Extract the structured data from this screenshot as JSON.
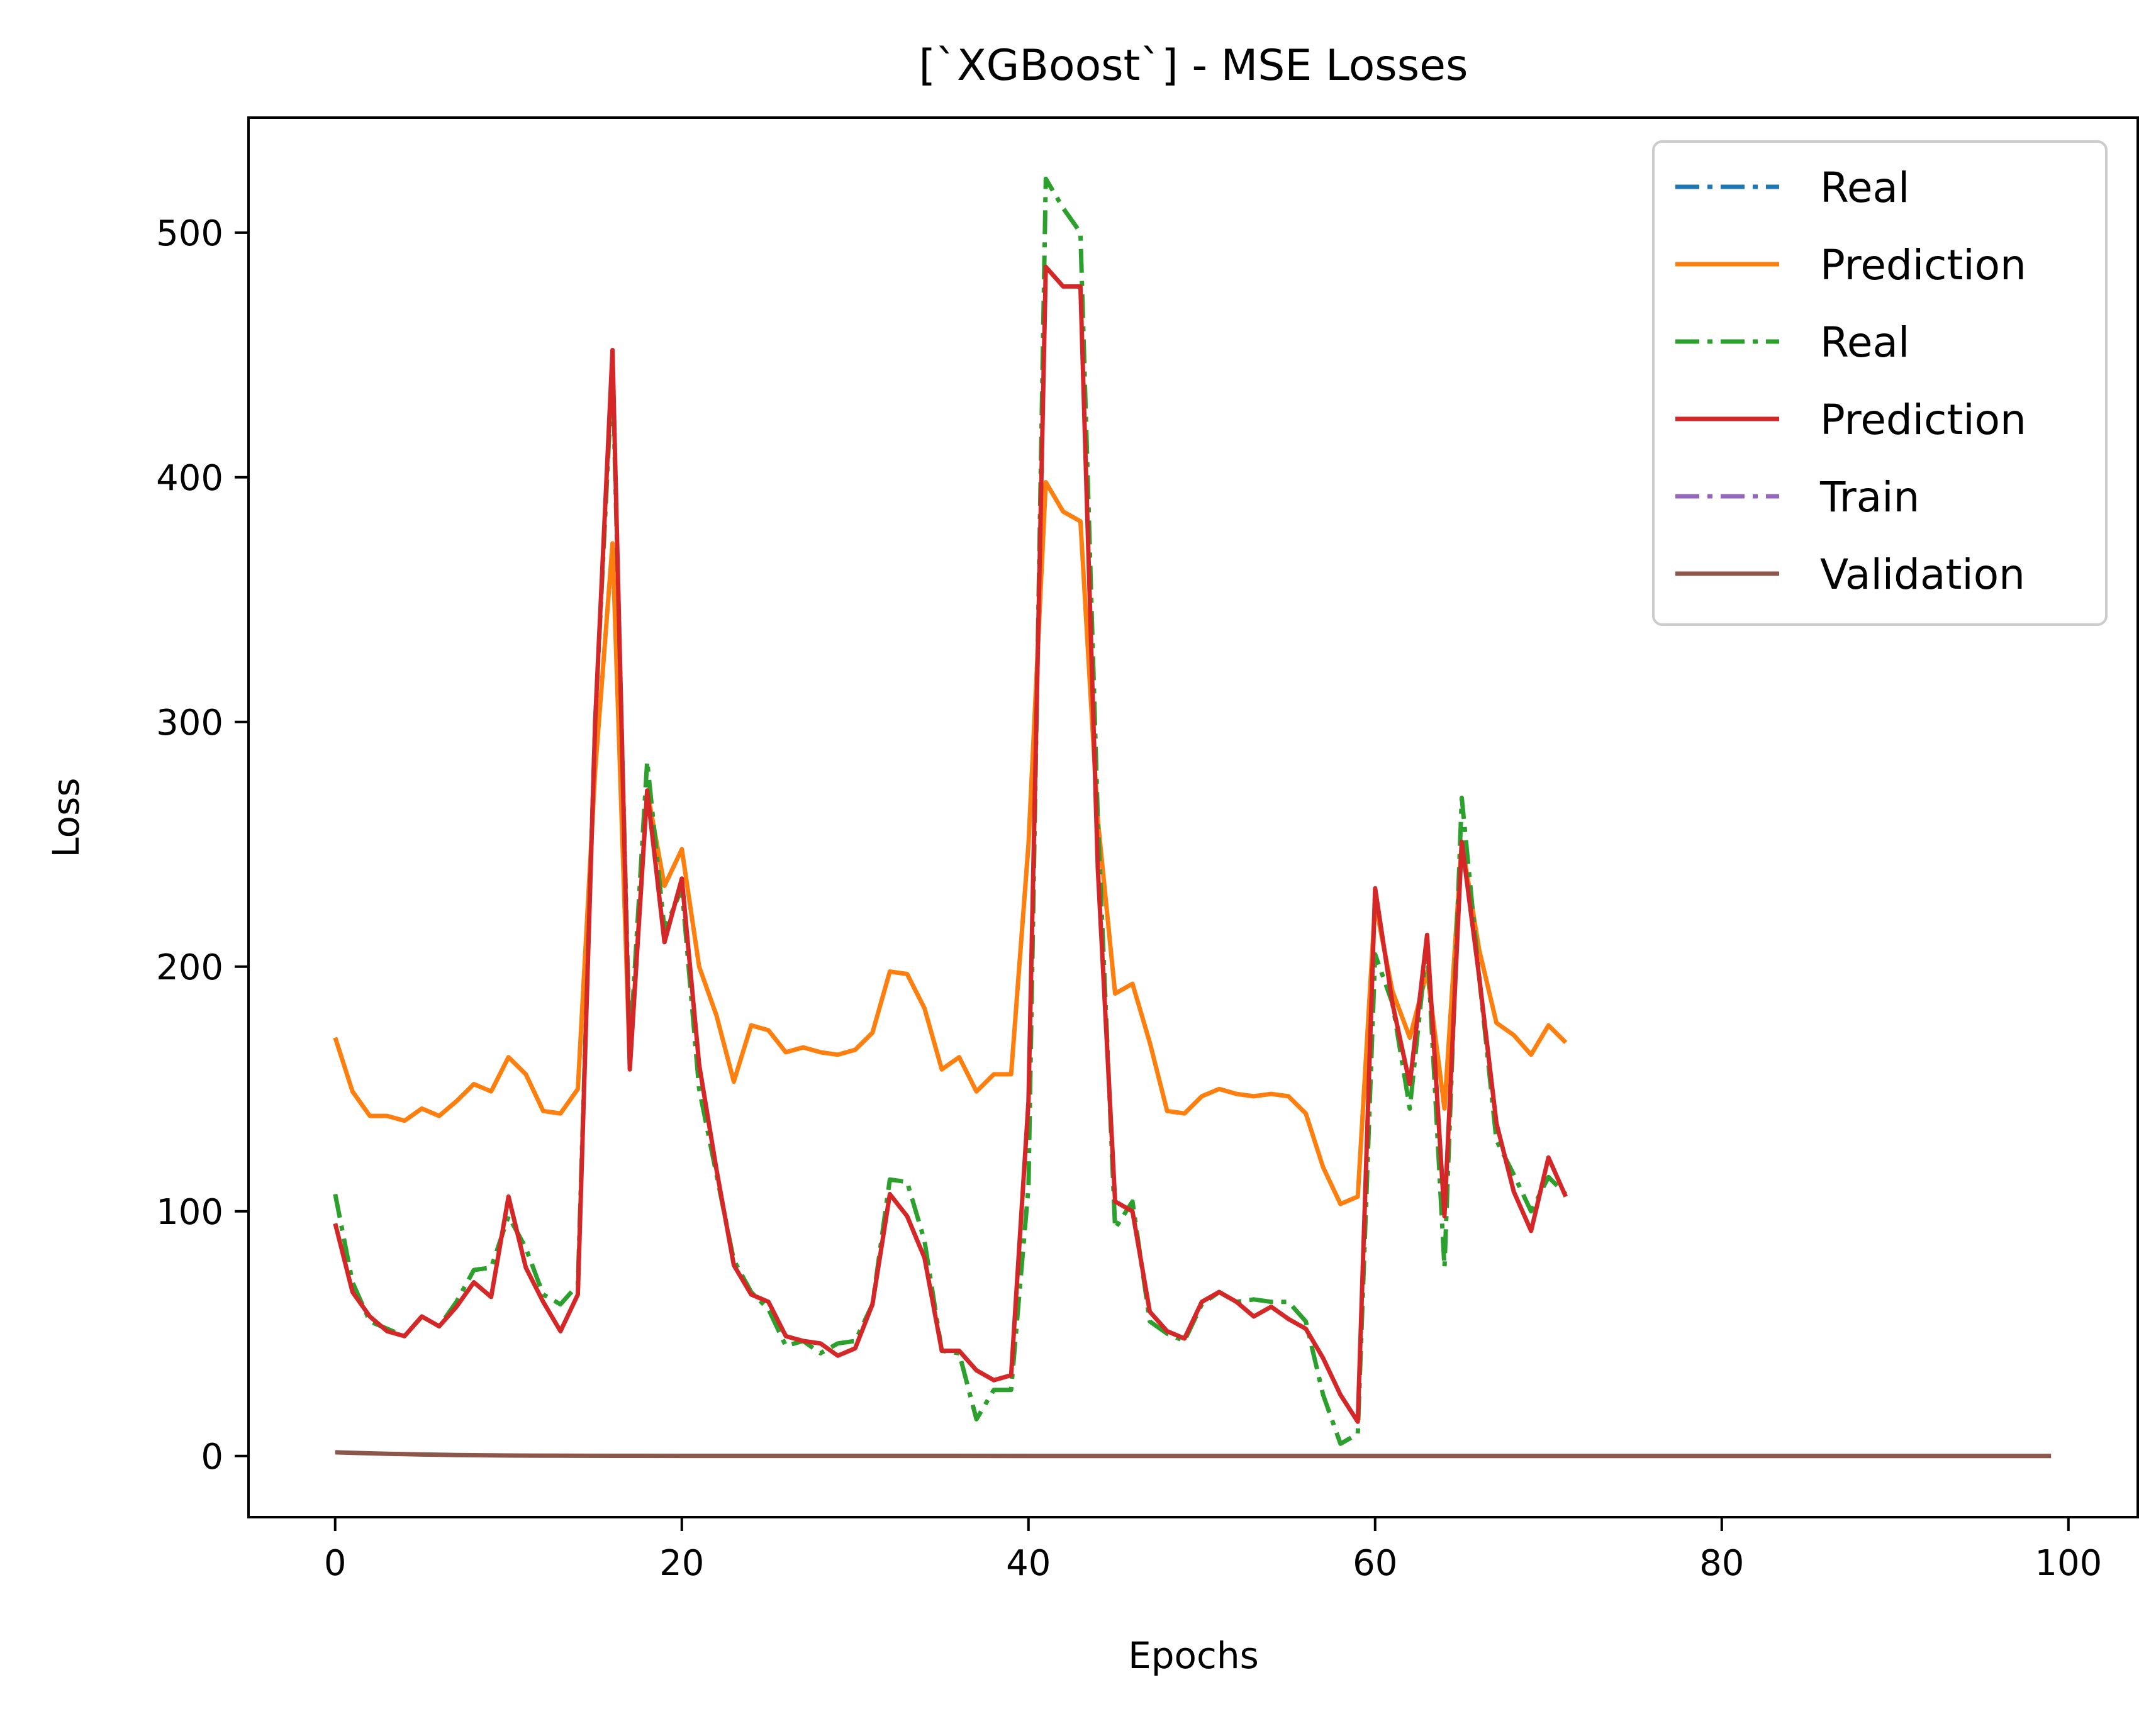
{
  "chart_data": {
    "type": "line",
    "title": "[`XGBoost`] - MSE Losses",
    "xlabel": "Epochs",
    "ylabel": "Loss",
    "xlim": [
      -5,
      104
    ],
    "ylim": [
      -25,
      547
    ],
    "xticks": [
      0,
      20,
      40,
      60,
      80,
      100
    ],
    "yticks": [
      0,
      100,
      200,
      300,
      400,
      500
    ],
    "grid": false,
    "legend_position": "top-right",
    "series": [
      {
        "name": "Real",
        "color": "#1f77b4",
        "style": "dashdot",
        "x": [],
        "values": []
      },
      {
        "name": "Prediction",
        "color": "#ff7f0e",
        "style": "solid",
        "x": [
          0,
          1,
          2,
          3,
          4,
          5,
          6,
          7,
          8,
          9,
          10,
          11,
          12,
          13,
          14,
          15,
          16,
          17,
          18,
          19,
          20,
          21,
          22,
          23,
          24,
          25,
          26,
          27,
          28,
          29,
          30,
          31,
          32,
          33,
          34,
          35,
          36,
          37,
          38,
          39,
          40,
          41,
          42,
          43,
          44,
          45,
          46,
          47,
          48,
          49,
          50,
          51,
          52,
          53,
          54,
          55,
          56,
          57,
          58,
          59,
          60,
          61,
          62,
          63,
          64,
          65,
          66,
          67,
          68,
          69,
          70,
          71
        ],
        "values": [
          171,
          149,
          139,
          139,
          137,
          142,
          139,
          145,
          152,
          149,
          163,
          156,
          141,
          140,
          150,
          280,
          373,
          160,
          272,
          233,
          248,
          200,
          180,
          153,
          176,
          174,
          165,
          167,
          165,
          164,
          166,
          173,
          198,
          197,
          183,
          158,
          163,
          149,
          156,
          156,
          250,
          398,
          386,
          382,
          260,
          189,
          193,
          169,
          141,
          140,
          147,
          150,
          148,
          147,
          148,
          147,
          140,
          118,
          103,
          106,
          226,
          190,
          171,
          198,
          142,
          251,
          207,
          177,
          172,
          164,
          176,
          169
        ]
      },
      {
        "name": "Real",
        "color": "#2ca02c",
        "style": "dashdot",
        "x": [
          0,
          1,
          2,
          3,
          4,
          5,
          6,
          7,
          8,
          9,
          10,
          11,
          12,
          13,
          14,
          15,
          16,
          17,
          18,
          19,
          20,
          21,
          22,
          23,
          24,
          25,
          26,
          27,
          28,
          29,
          30,
          31,
          32,
          33,
          34,
          35,
          36,
          37,
          38,
          39,
          40,
          41,
          42,
          43,
          44,
          45,
          46,
          47,
          48,
          49,
          50,
          51,
          52,
          53,
          54,
          55,
          56,
          57,
          58,
          59,
          60,
          61,
          62,
          63,
          64,
          65,
          66,
          67,
          68,
          69,
          70,
          71
        ],
        "values": [
          107,
          71,
          55,
          52,
          49,
          57,
          53,
          63,
          76,
          77,
          98,
          85,
          66,
          62,
          70,
          300,
          445,
          165,
          284,
          215,
          232,
          150,
          115,
          80,
          67,
          60,
          45,
          47,
          42,
          46,
          47,
          62,
          113,
          112,
          88,
          43,
          42,
          15,
          27,
          27,
          110,
          522,
          510,
          500,
          260,
          93,
          104,
          55,
          50,
          47,
          62,
          67,
          63,
          64,
          63,
          63,
          55,
          25,
          5,
          9,
          205,
          185,
          142,
          210,
          77,
          269,
          196,
          129,
          115,
          100,
          114,
          107
        ]
      },
      {
        "name": "Prediction",
        "color": "#d62728",
        "style": "solid",
        "x": [
          0,
          1,
          2,
          3,
          4,
          5,
          6,
          7,
          8,
          9,
          10,
          11,
          12,
          13,
          14,
          15,
          16,
          17,
          18,
          19,
          20,
          21,
          22,
          23,
          24,
          25,
          26,
          27,
          28,
          29,
          30,
          31,
          32,
          33,
          34,
          35,
          36,
          37,
          38,
          39,
          40,
          41,
          42,
          43,
          44,
          45,
          46,
          47,
          48,
          49,
          50,
          51,
          52,
          53,
          54,
          55,
          56,
          57,
          58,
          59,
          60,
          61,
          62,
          63,
          64,
          65,
          66,
          67,
          68,
          69,
          70,
          71
        ],
        "values": [
          95,
          67,
          57,
          51,
          49,
          57,
          53,
          61,
          71,
          65,
          106,
          77,
          63,
          51,
          66,
          300,
          452,
          158,
          272,
          210,
          236,
          160,
          117,
          78,
          66,
          63,
          49,
          47,
          46,
          41,
          44,
          62,
          107,
          98,
          81,
          43,
          43,
          35,
          31,
          33,
          145,
          486,
          478,
          478,
          240,
          104,
          100,
          59,
          51,
          48,
          63,
          67,
          63,
          57,
          61,
          56,
          52,
          40,
          25,
          14,
          232,
          185,
          152,
          213,
          98,
          251,
          196,
          136,
          108,
          92,
          122,
          106
        ]
      },
      {
        "name": "Train",
        "color": "#9467bd",
        "style": "dashdot",
        "x": [],
        "values": []
      },
      {
        "name": "Validation",
        "color": "#8c564b",
        "style": "solid",
        "x": [
          0,
          1,
          2,
          3,
          4,
          5,
          6,
          7,
          8,
          9,
          10,
          12,
          14,
          16,
          20,
          30,
          40,
          50,
          60,
          70,
          80,
          90,
          99
        ],
        "values": [
          1.5,
          1.3,
          1.1,
          0.9,
          0.75,
          0.6,
          0.5,
          0.4,
          0.32,
          0.25,
          0.2,
          0.15,
          0.1,
          0.07,
          0.05,
          0.03,
          0.02,
          0.02,
          0.01,
          0.01,
          0.01,
          0.01,
          0.01
        ]
      }
    ]
  }
}
